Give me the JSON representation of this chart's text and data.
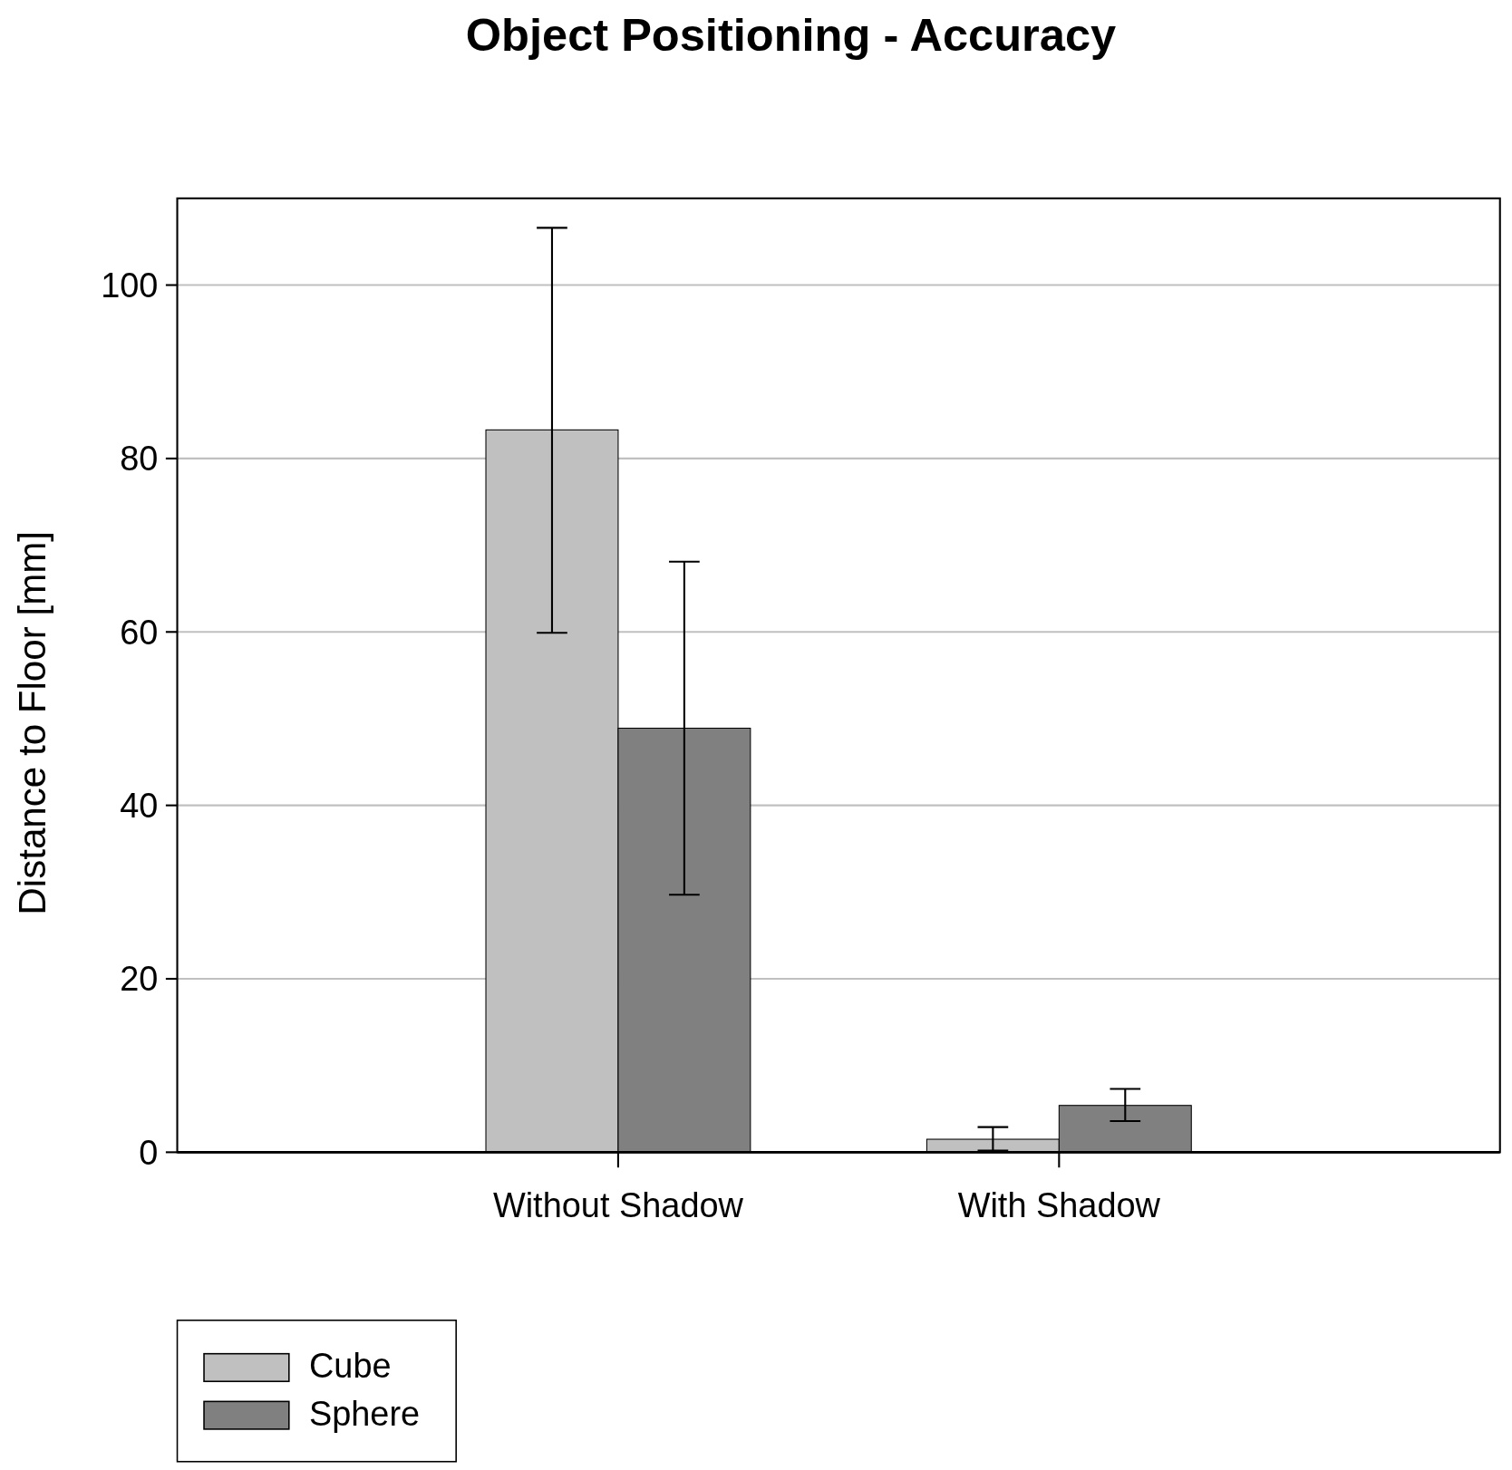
{
  "chart_data": {
    "type": "bar",
    "title": "Object Positioning - Accuracy",
    "ylabel": "Distance to Floor [mm]",
    "categories": [
      "Without Shadow",
      "With Shadow"
    ],
    "series": [
      {
        "name": "Cube",
        "color": "#c0c0c0",
        "values": [
          83.3,
          1.5
        ],
        "errors": [
          [
            59.9,
            106.6
          ],
          [
            0.2,
            2.9
          ]
        ]
      },
      {
        "name": "Sphere",
        "color": "#808080",
        "values": [
          48.9,
          5.4
        ],
        "errors": [
          [
            29.7,
            68.1
          ],
          [
            3.6,
            7.3
          ]
        ]
      }
    ],
    "ylim": [
      0,
      110
    ],
    "yticks": [
      0,
      20,
      40,
      60,
      80,
      100
    ],
    "grid": "y",
    "legend": "bottom left"
  }
}
